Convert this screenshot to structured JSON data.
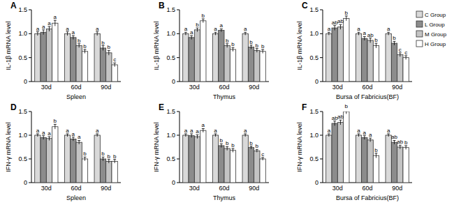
{
  "chart_data": [
    {
      "type": "bar",
      "title": "A",
      "x_label": "Spleen",
      "y_label": "IL-1β mRNA level",
      "categories": [
        "30d",
        "60d",
        "90d"
      ],
      "ylim": [
        0,
        1.5
      ],
      "yticks": [
        0,
        0.5,
        {
          "value": 1,
          "label": "1.0"
        },
        1.5
      ],
      "series": [
        {
          "color": "#d9d9d9",
          "values": [
            1.0,
            1.0,
            1.0
          ],
          "errors": [
            0.04,
            0.04,
            0.04
          ],
          "annotations": [
            "a",
            "a",
            "a"
          ]
        },
        {
          "color": "#8c8c8c",
          "values": [
            1.03,
            0.92,
            0.7
          ],
          "errors": [
            0.05,
            0.04,
            0.05
          ],
          "annotations": [
            "a",
            "a",
            "b"
          ]
        },
        {
          "color": "#c4c4c4",
          "values": [
            1.1,
            0.75,
            0.6
          ],
          "errors": [
            0.05,
            0.04,
            0.05
          ],
          "annotations": [
            "a",
            "b",
            "b"
          ]
        },
        {
          "color": "#ffffff",
          "values": [
            1.22,
            0.63,
            0.35
          ],
          "errors": [
            0.06,
            0.04,
            0.04
          ],
          "annotations": [
            "a",
            "b",
            "c"
          ]
        }
      ]
    },
    {
      "type": "bar",
      "title": "B",
      "x_label": "Thymus",
      "y_label": "IL-1β mRNA level",
      "categories": [
        "30d",
        "60d",
        "90d"
      ],
      "ylim": [
        0,
        1.5
      ],
      "yticks": [
        0,
        0.5,
        {
          "value": 1,
          "label": "1.0"
        },
        1.5
      ],
      "series": [
        {
          "color": "#d9d9d9",
          "values": [
            1.0,
            1.0,
            1.0
          ],
          "errors": [
            0.03,
            0.03,
            0.03
          ],
          "annotations": [
            "a",
            "a",
            "a"
          ]
        },
        {
          "color": "#8c8c8c",
          "values": [
            0.92,
            1.07,
            0.72
          ],
          "errors": [
            0.04,
            0.03,
            0.04
          ],
          "annotations": [
            "a",
            "a",
            "b"
          ]
        },
        {
          "color": "#c4c4c4",
          "values": [
            1.08,
            0.75,
            0.65
          ],
          "errors": [
            0.04,
            0.04,
            0.04
          ],
          "annotations": [
            "b",
            "b",
            "b"
          ]
        },
        {
          "color": "#ffffff",
          "values": [
            1.27,
            0.67,
            0.63
          ],
          "errors": [
            0.04,
            0.04,
            0.04
          ],
          "annotations": [
            "b",
            "b",
            "b"
          ]
        }
      ]
    },
    {
      "type": "bar",
      "title": "C",
      "x_label": "Bursa of Fabricius(BF)",
      "y_label": "IL-1β mRNA level",
      "categories": [
        "30d",
        "60d",
        "90d"
      ],
      "ylim": [
        0,
        1.5
      ],
      "yticks": [
        0,
        0.5,
        {
          "value": 1,
          "label": "1.0"
        },
        1.5
      ],
      "legend": "right",
      "series": [
        {
          "name": "C Group",
          "color": "#d9d9d9",
          "values": [
            1.0,
            1.0,
            1.0
          ],
          "errors": [
            0.03,
            0.03,
            0.03
          ],
          "annotations": [
            "a",
            "a",
            "a"
          ]
        },
        {
          "name": "L Group",
          "color": "#8c8c8c",
          "values": [
            1.12,
            0.9,
            0.8
          ],
          "errors": [
            0.05,
            0.04,
            0.04
          ],
          "annotations": [
            "ab",
            "a",
            "b"
          ]
        },
        {
          "name": "M Group",
          "color": "#c4c4c4",
          "values": [
            1.14,
            0.86,
            0.56
          ],
          "errors": [
            0.05,
            0.05,
            0.04
          ],
          "annotations": [
            "ab",
            "ab",
            "c"
          ]
        },
        {
          "name": "H Group",
          "color": "#ffffff",
          "values": [
            1.32,
            0.75,
            0.5
          ],
          "errors": [
            0.05,
            0.05,
            0.04
          ],
          "annotations": [
            "b",
            "b",
            "c"
          ]
        }
      ]
    },
    {
      "type": "bar",
      "title": "D",
      "x_label": "Spleen",
      "y_label": "IFN-γ mRNA level",
      "categories": [
        "30d",
        "60d",
        "90d"
      ],
      "ylim": [
        0,
        1.5
      ],
      "yticks": [
        0,
        0.5,
        {
          "value": 1,
          "label": "1.0"
        },
        1.5
      ],
      "series": [
        {
          "color": "#d9d9d9",
          "values": [
            1.0,
            1.0,
            1.0
          ],
          "errors": [
            0.03,
            0.03,
            0.03
          ],
          "annotations": [
            "a",
            "a",
            "a"
          ]
        },
        {
          "color": "#8c8c8c",
          "values": [
            0.95,
            0.92,
            0.5
          ],
          "errors": [
            0.04,
            0.04,
            0.04
          ],
          "annotations": [
            "a",
            "a",
            "b"
          ]
        },
        {
          "color": "#c4c4c4",
          "values": [
            0.93,
            0.85,
            0.45
          ],
          "errors": [
            0.04,
            0.04,
            0.04
          ],
          "annotations": [
            "a",
            "a",
            "b"
          ]
        },
        {
          "color": "#ffffff",
          "values": [
            1.18,
            0.5,
            0.45
          ],
          "errors": [
            0.05,
            0.04,
            0.04
          ],
          "annotations": [
            "b",
            "b",
            "b"
          ]
        }
      ]
    },
    {
      "type": "bar",
      "title": "E",
      "x_label": "Thymus",
      "y_label": "IFN-γ mRNA level",
      "categories": [
        "30d",
        "60d",
        "90d"
      ],
      "ylim": [
        0,
        1.5
      ],
      "yticks": [
        0,
        0.5,
        {
          "value": 1,
          "label": "1.0"
        },
        1.5
      ],
      "series": [
        {
          "color": "#d9d9d9",
          "values": [
            1.0,
            1.0,
            1.0
          ],
          "errors": [
            0.03,
            0.03,
            0.03
          ],
          "annotations": [
            "a",
            "a",
            "a"
          ]
        },
        {
          "color": "#8c8c8c",
          "values": [
            0.99,
            0.78,
            0.74
          ],
          "errors": [
            0.04,
            0.04,
            0.03
          ],
          "annotations": [
            "a",
            "b",
            "b"
          ]
        },
        {
          "color": "#c4c4c4",
          "values": [
            0.97,
            0.72,
            0.67
          ],
          "errors": [
            0.04,
            0.04,
            0.03
          ],
          "annotations": [
            "a",
            "b",
            "b"
          ]
        },
        {
          "color": "#ffffff",
          "values": [
            1.1,
            0.68,
            0.5
          ],
          "errors": [
            0.04,
            0.04,
            0.03
          ],
          "annotations": [
            "a",
            "b",
            "c"
          ]
        }
      ]
    },
    {
      "type": "bar",
      "title": "F",
      "x_label": "Bursa of Fabricius(BF)",
      "y_label": "IFN-γ mRNA level",
      "categories": [
        "30d",
        "60d",
        "90d"
      ],
      "ylim": [
        0,
        1.5
      ],
      "yticks": [
        0,
        0.5,
        {
          "value": 1,
          "label": "1.0"
        },
        1.5
      ],
      "series": [
        {
          "color": "#d9d9d9",
          "values": [
            1.0,
            1.0,
            1.0
          ],
          "errors": [
            0.03,
            0.03,
            0.03
          ],
          "annotations": [
            "a",
            "a",
            "a"
          ]
        },
        {
          "color": "#8c8c8c",
          "values": [
            1.25,
            0.95,
            0.85
          ],
          "errors": [
            0.05,
            0.04,
            0.04
          ],
          "annotations": [
            "ab",
            "a",
            "ab"
          ]
        },
        {
          "color": "#c4c4c4",
          "values": [
            1.27,
            0.9,
            0.75
          ],
          "errors": [
            0.05,
            0.04,
            0.04
          ],
          "annotations": [
            "ab",
            "a",
            "ab"
          ]
        },
        {
          "color": "#ffffff",
          "values": [
            1.5,
            0.57,
            0.74
          ],
          "errors": [
            0.05,
            0.05,
            0.04
          ],
          "annotations": [
            "b",
            "b",
            "b"
          ]
        }
      ]
    }
  ]
}
